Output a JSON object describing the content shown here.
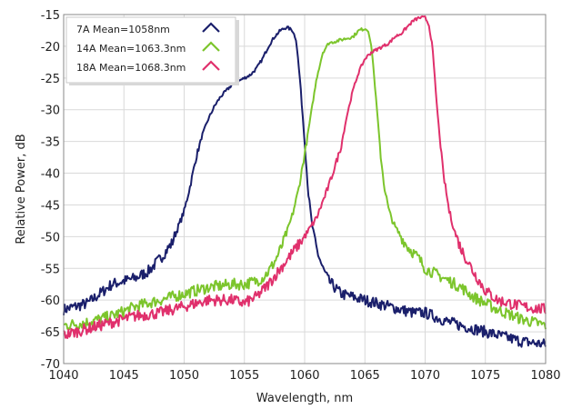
{
  "chart_data": {
    "type": "line",
    "xlabel": "Wavelength, nm",
    "ylabel": "Relative Power, dB",
    "xlim": [
      1040,
      1080
    ],
    "ylim": [
      -70,
      -15
    ],
    "xticks": [
      1040,
      1045,
      1050,
      1055,
      1060,
      1065,
      1070,
      1075,
      1080
    ],
    "yticks": [
      -15,
      -20,
      -25,
      -30,
      -35,
      -40,
      -45,
      -50,
      -55,
      -60,
      -65,
      -70
    ],
    "grid": true,
    "legend": "top-left",
    "series": [
      {
        "name": "7A Mean=1058nm",
        "color": "#1a1f6b",
        "x": [
          1040,
          1041,
          1042,
          1043,
          1044,
          1045,
          1046,
          1047,
          1048,
          1049,
          1050,
          1050.5,
          1051,
          1051.5,
          1052,
          1052.5,
          1053,
          1053.5,
          1054,
          1054.5,
          1055,
          1055.5,
          1056,
          1056.5,
          1057,
          1057.5,
          1058,
          1058.5,
          1059,
          1059.3,
          1059.6,
          1060,
          1060.3,
          1060.6,
          1061,
          1061.5,
          1062,
          1062.5,
          1063,
          1064,
          1065,
          1066,
          1067,
          1068,
          1069,
          1070,
          1072,
          1074,
          1076,
          1078,
          1080
        ],
        "y": [
          -61.5,
          -61,
          -60.5,
          -59,
          -57.5,
          -57,
          -56.5,
          -55.5,
          -53.5,
          -51,
          -46,
          -42,
          -37.5,
          -34,
          -31.5,
          -29.5,
          -28,
          -27,
          -26,
          -25.5,
          -25,
          -24.5,
          -23.5,
          -22,
          -20,
          -18.5,
          -17.5,
          -17,
          -17.5,
          -19,
          -25,
          -35,
          -43,
          -48,
          -52,
          -55,
          -57,
          -58,
          -59,
          -59.5,
          -60,
          -60.5,
          -61,
          -61.5,
          -62,
          -62,
          -63.5,
          -64.5,
          -65.5,
          -66.5,
          -67
        ]
      },
      {
        "name": "14A Mean=1063.3nm",
        "color": "#7cc52c",
        "x": [
          1040,
          1042,
          1044,
          1046,
          1048,
          1050,
          1052,
          1054,
          1055,
          1056,
          1056.5,
          1057,
          1057.5,
          1058,
          1058.5,
          1059,
          1059.5,
          1060,
          1060.5,
          1061,
          1061.5,
          1062,
          1063,
          1064,
          1064.5,
          1065,
          1065.3,
          1065.6,
          1066,
          1066.3,
          1066.6,
          1067,
          1067.5,
          1068,
          1068.5,
          1069,
          1069.5,
          1070,
          1071,
          1072,
          1073,
          1074,
          1076,
          1078,
          1080
        ],
        "y": [
          -64,
          -63.5,
          -62.5,
          -61,
          -60,
          -59,
          -58,
          -57.5,
          -57.5,
          -57,
          -56.5,
          -55.5,
          -54,
          -52,
          -49.5,
          -46.5,
          -42.5,
          -37,
          -31,
          -25,
          -21,
          -19.5,
          -19,
          -18.5,
          -17.5,
          -17.2,
          -17.5,
          -21,
          -30,
          -37,
          -42,
          -46,
          -48.5,
          -50,
          -51.5,
          -52.5,
          -53.5,
          -55,
          -56,
          -57,
          -58,
          -59.5,
          -61.5,
          -63,
          -64
        ]
      },
      {
        "name": "18A Mean=1068.3nm",
        "color": "#e0306c",
        "x": [
          1040,
          1042,
          1044,
          1046,
          1048,
          1050,
          1052,
          1054,
          1055,
          1056,
          1057,
          1058,
          1059,
          1060,
          1061,
          1062,
          1063,
          1063.5,
          1064,
          1064.5,
          1065,
          1065.5,
          1066,
          1066.5,
          1067,
          1067.5,
          1068,
          1068.5,
          1069,
          1069.5,
          1070,
          1070.3,
          1070.6,
          1071,
          1071.5,
          1072,
          1072.5,
          1073,
          1074,
          1075,
          1076,
          1078,
          1080
        ],
        "y": [
          -65.5,
          -64.5,
          -63.5,
          -62.5,
          -62,
          -61,
          -60,
          -60,
          -60.5,
          -59.5,
          -57.5,
          -55,
          -52.5,
          -50,
          -47,
          -42,
          -36,
          -31,
          -27,
          -24,
          -22,
          -21,
          -20.5,
          -20,
          -19.5,
          -18.5,
          -18,
          -17,
          -16,
          -15.5,
          -15.5,
          -16.5,
          -20,
          -30,
          -40,
          -46,
          -49.5,
          -52,
          -55.5,
          -58.5,
          -60,
          -61,
          -61.5
        ]
      }
    ]
  }
}
